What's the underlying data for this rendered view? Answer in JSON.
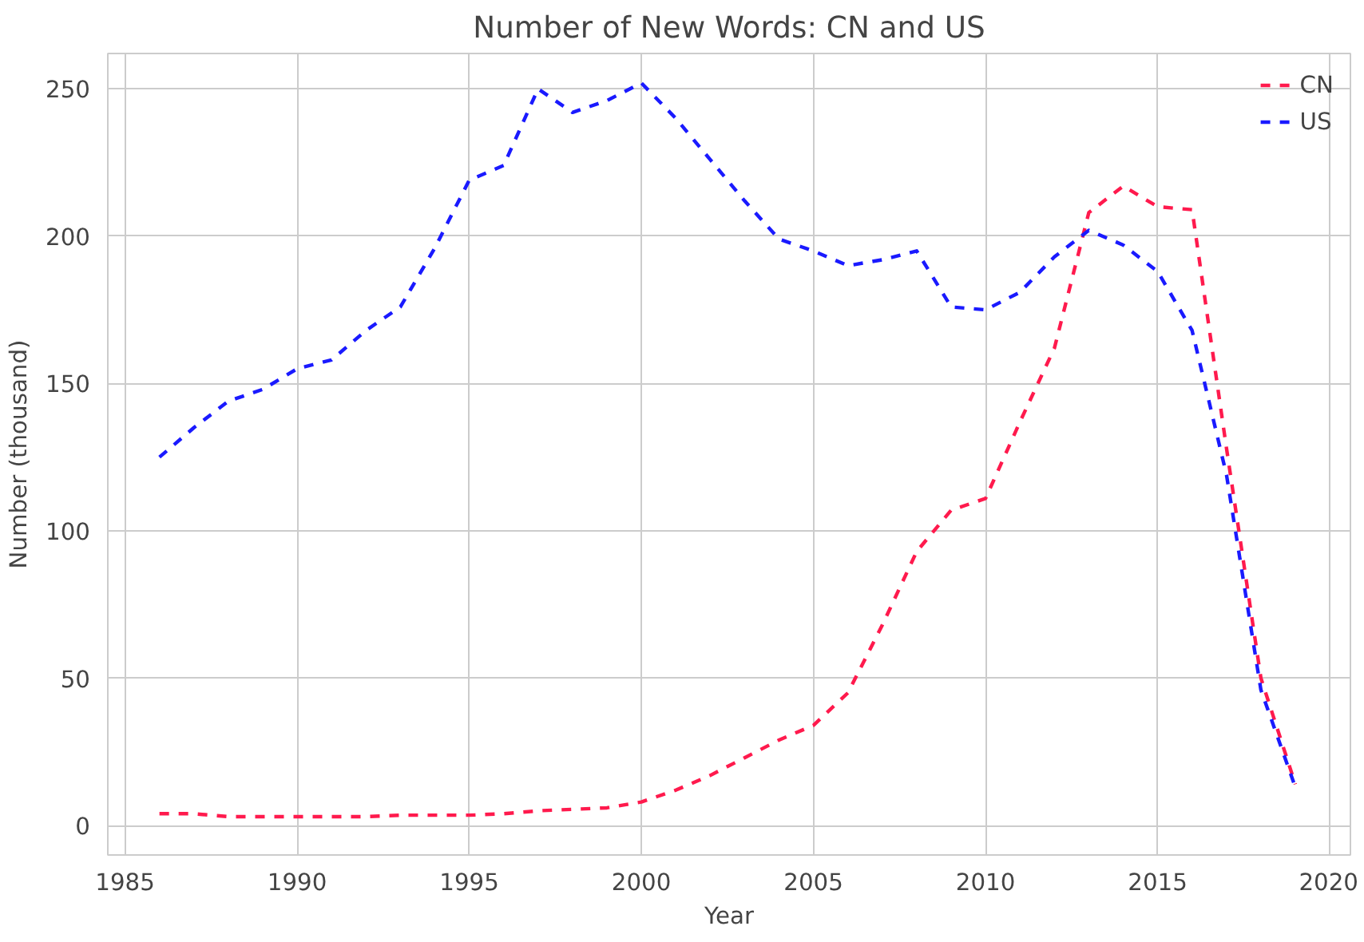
{
  "chart_data": {
    "type": "line",
    "title": "Number of New Words: CN and US",
    "xlabel": "Year",
    "ylabel": "Number (thousand)",
    "x": [
      1986,
      1987,
      1988,
      1989,
      1990,
      1991,
      1992,
      1993,
      1994,
      1995,
      1996,
      1997,
      1998,
      1999,
      2000,
      2001,
      2002,
      2003,
      2004,
      2005,
      2006,
      2007,
      2008,
      2009,
      2010,
      2011,
      2012,
      2013,
      2014,
      2015,
      2016,
      2017,
      2018,
      2019
    ],
    "series": [
      {
        "name": "CN",
        "color": "#ff1a4d",
        "values": [
          4,
          4,
          3,
          3,
          3,
          3,
          3,
          3.5,
          3.5,
          3.5,
          4,
          5,
          5.5,
          6,
          8,
          12,
          17,
          23,
          29,
          34,
          45,
          68,
          93,
          107,
          111,
          137,
          162,
          208,
          217,
          210,
          209,
          128,
          50,
          14
        ]
      },
      {
        "name": "US",
        "color": "#1a1aff",
        "values": [
          125,
          135,
          144,
          148,
          155,
          158,
          168,
          176,
          196,
          219,
          224,
          250,
          242,
          246,
          252,
          240,
          226,
          212,
          199,
          195,
          190,
          192,
          195,
          176,
          175,
          181,
          193,
          202,
          197,
          188,
          168,
          119,
          46,
          13
        ]
      }
    ],
    "xlim": [
      1984.5,
      2020.6
    ],
    "ylim": [
      -10,
      262
    ],
    "xticks": [
      1985,
      1990,
      1995,
      2000,
      2005,
      2010,
      2015,
      2020
    ],
    "yticks": [
      0,
      50,
      100,
      150,
      200,
      250
    ],
    "grid": true,
    "legend": "top right",
    "line_style": "dashed",
    "marker": "none"
  }
}
